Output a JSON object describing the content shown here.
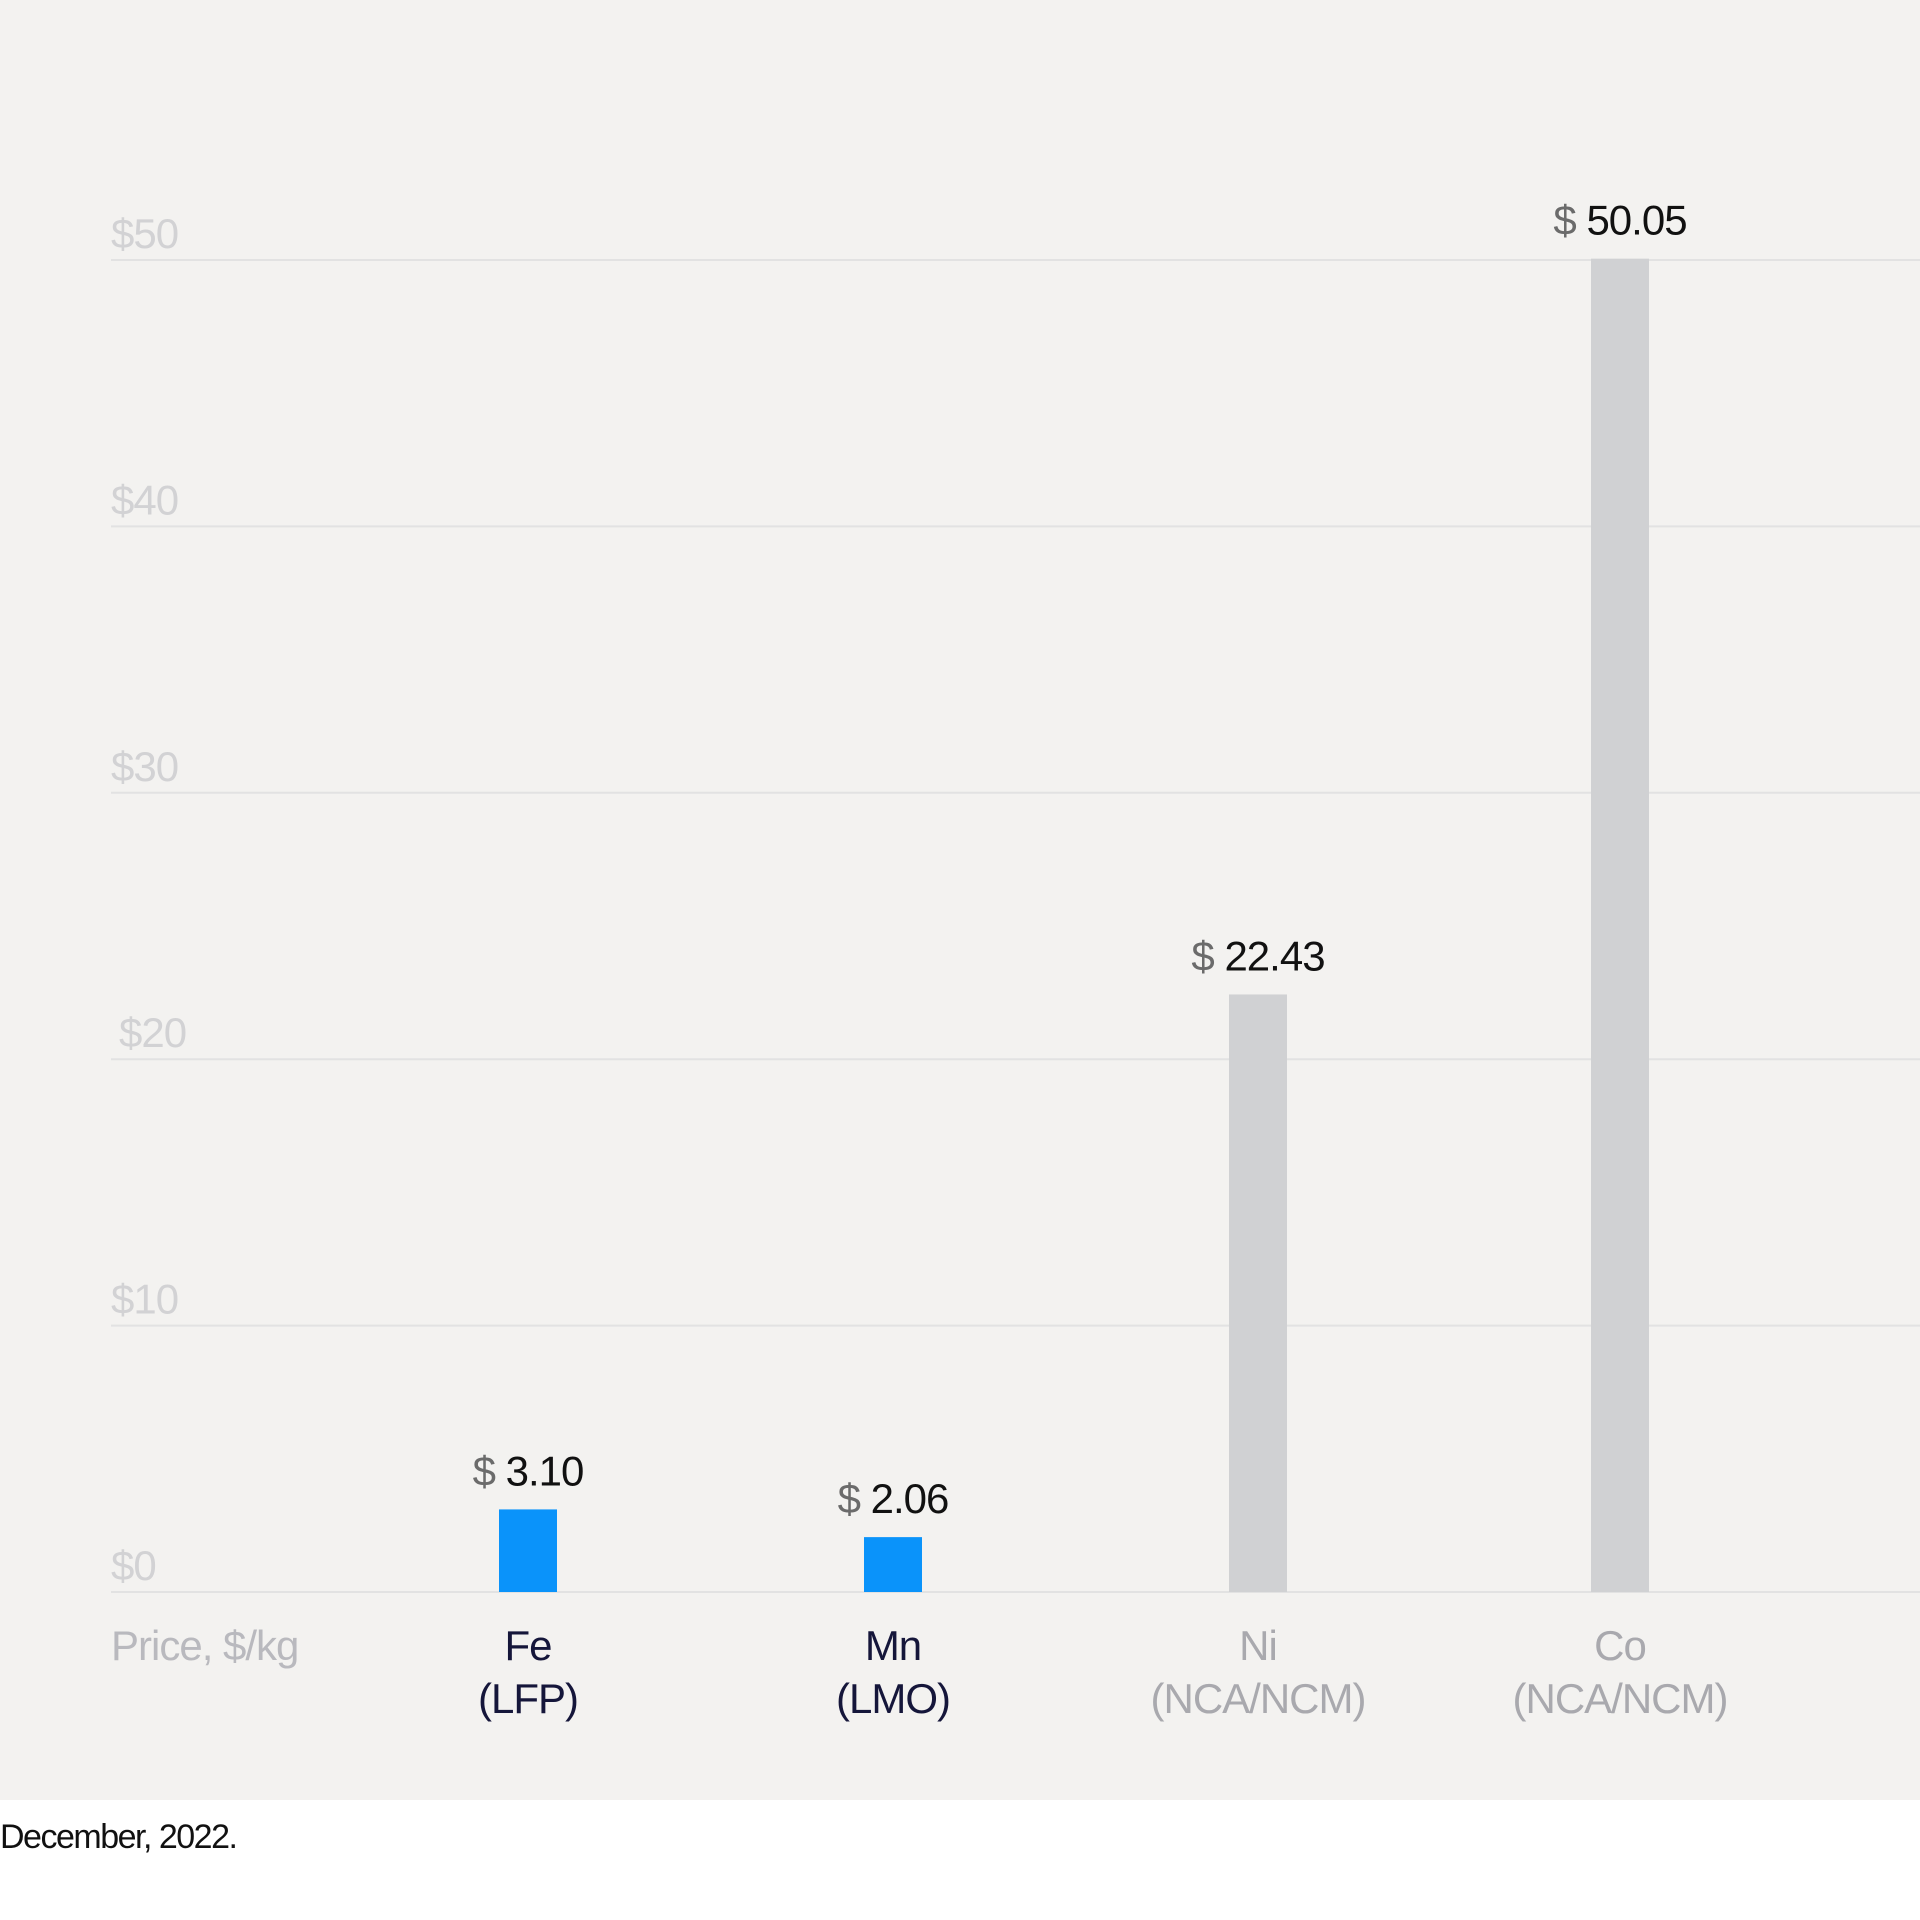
{
  "chart_data": {
    "type": "bar",
    "title": "",
    "xlabel": "",
    "ylabel": "Price, $/kg",
    "ylim": [
      0,
      50
    ],
    "yticks": [
      0,
      10,
      20,
      30,
      40,
      50
    ],
    "ytick_labels": [
      "$0",
      "$10",
      "$20",
      "$30",
      "$40",
      "$50"
    ],
    "grid": true,
    "categories": [
      {
        "line1": "Fe",
        "line2": "(LFP)"
      },
      {
        "line1": "Mn",
        "line2": "(LMO)"
      },
      {
        "line1": "Ni",
        "line2": "(NCA/NCM)"
      },
      {
        "line1": "Co",
        "line2": "(NCA/NCM)"
      }
    ],
    "values": [
      3.1,
      2.06,
      22.43,
      50.05
    ],
    "value_labels": [
      "3.10",
      "2.06",
      "22.43",
      "50.05"
    ],
    "currency_symbol": "$",
    "highlighted": [
      true,
      true,
      false,
      false
    ],
    "colors": {
      "highlight": "#0a93fa",
      "muted": "#d0d1d3",
      "label_highlight": "#15163a",
      "label_muted": "#a9a9ae",
      "grid": "#e2e2e2"
    }
  },
  "footer": "December, 2022."
}
